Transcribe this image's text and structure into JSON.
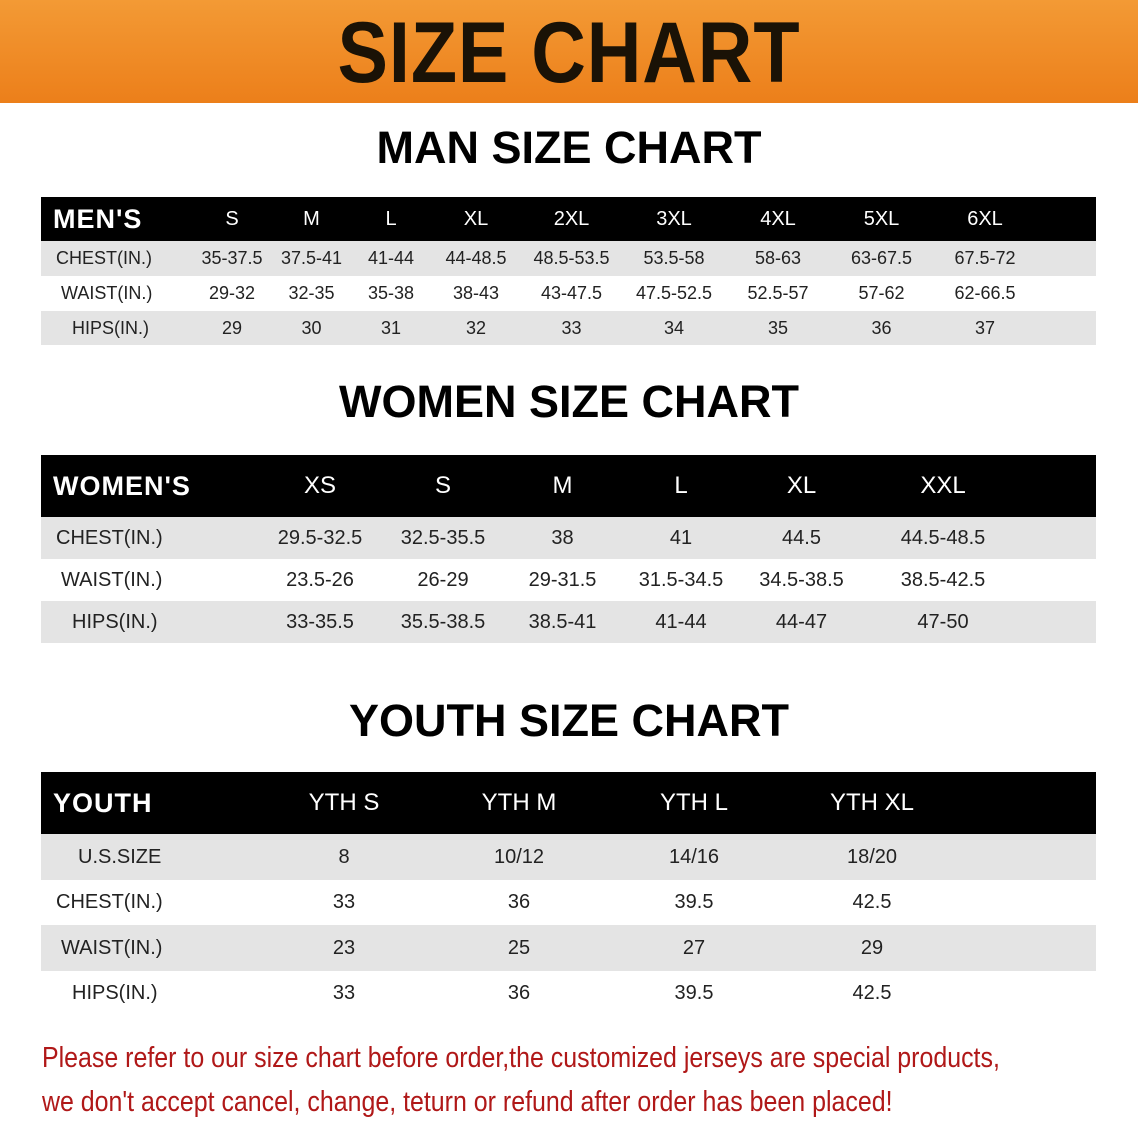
{
  "banner_title": "SIZE CHART",
  "men": {
    "title": "MAN SIZE CHART",
    "header": [
      "MEN'S",
      "S",
      "M",
      "L",
      "XL",
      "2XL",
      "3XL",
      "4XL",
      "5XL",
      "6XL"
    ],
    "rows": [
      [
        "CHEST(IN.)",
        "35-37.5",
        "37.5-41",
        "41-44",
        "44-48.5",
        "48.5-53.5",
        "53.5-58",
        "58-63",
        "63-67.5",
        "67.5-72"
      ],
      [
        "WAIST(IN.)",
        "29-32",
        "32-35",
        "35-38",
        "38-43",
        "43-47.5",
        "47.5-52.5",
        "52.5-57",
        "57-62",
        "62-66.5"
      ],
      [
        "HIPS(IN.)",
        "29",
        "30",
        "31",
        "32",
        "33",
        "34",
        "35",
        "36",
        "37"
      ]
    ]
  },
  "women": {
    "title": "WOMEN SIZE CHART",
    "header": [
      "WOMEN'S",
      "XS",
      "S",
      "M",
      "L",
      "XL",
      "XXL"
    ],
    "rows": [
      [
        "CHEST(IN.)",
        "29.5-32.5",
        "32.5-35.5",
        "38",
        "41",
        "44.5",
        "44.5-48.5"
      ],
      [
        "WAIST(IN.)",
        "23.5-26",
        "26-29",
        "29-31.5",
        "31.5-34.5",
        "34.5-38.5",
        "38.5-42.5"
      ],
      [
        "HIPS(IN.)",
        "33-35.5",
        "35.5-38.5",
        "38.5-41",
        "41-44",
        "44-47",
        "47-50"
      ]
    ]
  },
  "youth": {
    "title": "YOUTH SIZE CHART",
    "header": [
      "YOUTH",
      "YTH S",
      "YTH M",
      "YTH L",
      "YTH XL"
    ],
    "rows": [
      [
        "U.S.SIZE",
        "8",
        "10/12",
        "14/16",
        "18/20"
      ],
      [
        "CHEST(IN.)",
        "33",
        "36",
        "39.5",
        "42.5"
      ],
      [
        "WAIST(IN.)",
        "23",
        "25",
        "27",
        "29"
      ],
      [
        "HIPS(IN.)",
        "33",
        "36",
        "39.5",
        "42.5"
      ]
    ]
  },
  "note": {
    "line1": "Please refer to our size chart before order,the customized jerseys are special products,",
    "line2": "we don't accept cancel, change, teturn or refund after order has been placed!"
  },
  "colors": {
    "banner": "#ef8a24",
    "header_row": "#000000",
    "stripe": "#e4e4e4",
    "note": "#b01818"
  }
}
